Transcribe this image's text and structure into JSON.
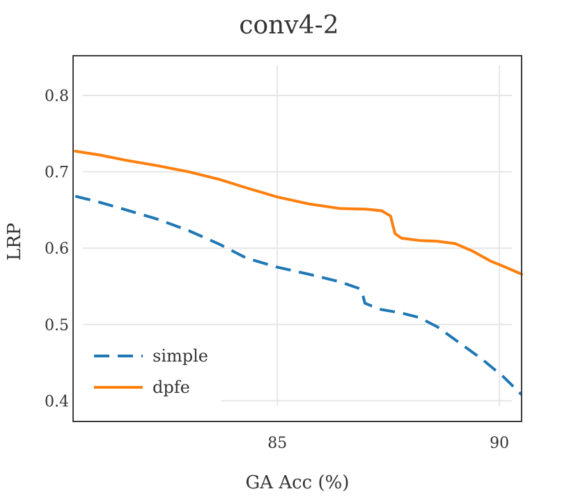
{
  "chart_data": {
    "type": "line",
    "title": "conv4-2",
    "xlabel": "GA Acc (%)",
    "ylabel": "LRP",
    "xlim": [
      80.4,
      90.5
    ],
    "ylim": [
      0.373,
      0.852
    ],
    "xticks": [
      85,
      90
    ],
    "yticks": [
      0.4,
      0.5,
      0.6,
      0.7,
      0.8
    ],
    "xtick_labels": [
      "85",
      "90"
    ],
    "ytick_labels": [
      "0.4",
      "0.5",
      "0.6",
      "0.7",
      "0.8"
    ],
    "grid": true,
    "legend_position": "bottom-left",
    "series": [
      {
        "name": "simple",
        "style": "dashed",
        "color": "#1f77b4",
        "x": [
          80.45,
          81.0,
          81.6,
          82.3,
          83.0,
          83.7,
          84.3,
          85.0,
          85.7,
          86.4,
          86.85,
          86.92,
          86.95,
          86.97,
          87.3,
          87.8,
          88.2,
          88.6,
          89.1,
          89.6,
          90.1,
          90.5
        ],
        "y": [
          0.668,
          0.66,
          0.65,
          0.638,
          0.623,
          0.605,
          0.587,
          0.575,
          0.566,
          0.556,
          0.547,
          0.54,
          0.533,
          0.528,
          0.52,
          0.515,
          0.509,
          0.497,
          0.476,
          0.455,
          0.431,
          0.408
        ]
      },
      {
        "name": "dpfe",
        "style": "solid",
        "color": "#ff7f0e",
        "x": [
          80.45,
          81.0,
          81.6,
          82.3,
          83.0,
          83.7,
          84.3,
          85.0,
          85.7,
          86.4,
          87.0,
          87.35,
          87.55,
          87.6,
          87.65,
          87.8,
          88.2,
          88.6,
          89.0,
          89.4,
          89.8,
          90.1,
          90.5
        ],
        "y": [
          0.727,
          0.722,
          0.715,
          0.708,
          0.7,
          0.69,
          0.679,
          0.667,
          0.658,
          0.652,
          0.651,
          0.649,
          0.642,
          0.63,
          0.619,
          0.613,
          0.61,
          0.609,
          0.606,
          0.596,
          0.583,
          0.576,
          0.566
        ]
      }
    ],
    "legend": [
      {
        "label": "simple",
        "style": "dashed",
        "color": "#1f77b4"
      },
      {
        "label": "dpfe",
        "style": "solid",
        "color": "#ff7f0e"
      }
    ]
  }
}
